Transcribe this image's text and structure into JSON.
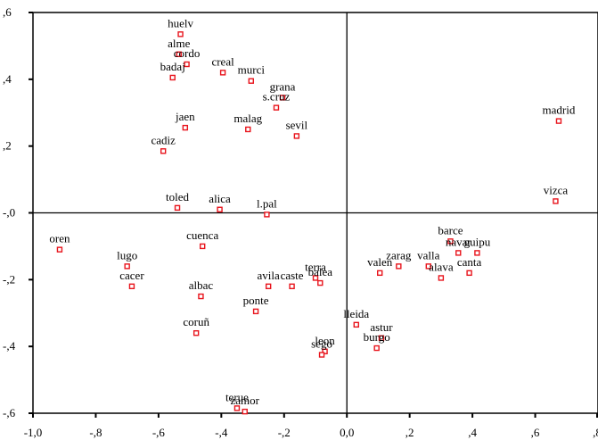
{
  "chart_data": {
    "type": "scatter",
    "title": "",
    "xlabel": "",
    "ylabel": "",
    "xlim": [
      -1.0,
      0.8
    ],
    "ylim": [
      -0.6,
      0.6
    ],
    "grid": false,
    "reference_lines": {
      "x": 0,
      "y": 0
    },
    "marker_color": "#e8141c",
    "marker": "hollow-square",
    "x_ticks": [
      {
        "value": -1.0,
        "label": "-1,0"
      },
      {
        "value": -0.8,
        "label": "-,8"
      },
      {
        "value": -0.6,
        "label": "-,6"
      },
      {
        "value": -0.4,
        "label": "-,4"
      },
      {
        "value": -0.2,
        "label": "-,2"
      },
      {
        "value": 0.0,
        "label": "0,0"
      },
      {
        "value": 0.2,
        "label": ",2"
      },
      {
        "value": 0.4,
        "label": ",4"
      },
      {
        "value": 0.6,
        "label": ",6"
      },
      {
        "value": 0.8,
        "label": ",8"
      }
    ],
    "y_ticks": [
      {
        "value": 0.6,
        "label": ",6"
      },
      {
        "value": 0.4,
        "label": ",4"
      },
      {
        "value": 0.2,
        "label": ",2"
      },
      {
        "value": 0.0,
        "label": "-,0"
      },
      {
        "value": -0.2,
        "label": "-,2"
      },
      {
        "value": -0.4,
        "label": "-,4"
      },
      {
        "value": -0.6,
        "label": "-,6"
      }
    ],
    "points": [
      {
        "label": "huelv",
        "x": -0.53,
        "y": 0.535
      },
      {
        "label": "cordo",
        "x": -0.51,
        "y": 0.445
      },
      {
        "label": "alme",
        "x": -0.535,
        "y": 0.475
      },
      {
        "label": "badaj",
        "x": -0.555,
        "y": 0.405
      },
      {
        "label": "creal",
        "x": -0.395,
        "y": 0.42
      },
      {
        "label": "murci",
        "x": -0.305,
        "y": 0.395
      },
      {
        "label": "grana",
        "x": -0.205,
        "y": 0.345
      },
      {
        "label": "s.cruz",
        "x": -0.225,
        "y": 0.315
      },
      {
        "label": "jaen",
        "x": -0.515,
        "y": 0.255
      },
      {
        "label": "malag",
        "x": -0.315,
        "y": 0.25
      },
      {
        "label": "sevil",
        "x": -0.16,
        "y": 0.23
      },
      {
        "label": "cadiz",
        "x": -0.585,
        "y": 0.185
      },
      {
        "label": "madrid",
        "x": 0.675,
        "y": 0.275
      },
      {
        "label": "vizca",
        "x": 0.665,
        "y": 0.035
      },
      {
        "label": "toled",
        "x": -0.54,
        "y": 0.015
      },
      {
        "label": "alica",
        "x": -0.405,
        "y": 0.01
      },
      {
        "label": "l.pal",
        "x": -0.255,
        "y": -0.005
      },
      {
        "label": "oren",
        "x": -0.915,
        "y": -0.11
      },
      {
        "label": "lugo",
        "x": -0.7,
        "y": -0.16
      },
      {
        "label": "cacer",
        "x": -0.685,
        "y": -0.22
      },
      {
        "label": "cuenca",
        "x": -0.46,
        "y": -0.1
      },
      {
        "label": "albac",
        "x": -0.465,
        "y": -0.25
      },
      {
        "label": "avila",
        "x": -0.25,
        "y": -0.22
      },
      {
        "label": "caste",
        "x": -0.175,
        "y": -0.22
      },
      {
        "label": "terra",
        "x": -0.1,
        "y": -0.195
      },
      {
        "label": "balea",
        "x": -0.085,
        "y": -0.21
      },
      {
        "label": "ponte",
        "x": -0.29,
        "y": -0.295
      },
      {
        "label": "coruñ",
        "x": -0.48,
        "y": -0.36
      },
      {
        "label": "leon",
        "x": -0.07,
        "y": -0.415
      },
      {
        "label": "sego",
        "x": -0.08,
        "y": -0.425
      },
      {
        "label": "lleida",
        "x": 0.03,
        "y": -0.335
      },
      {
        "label": "astur",
        "x": 0.11,
        "y": -0.375
      },
      {
        "label": "burgo",
        "x": 0.095,
        "y": -0.405
      },
      {
        "label": "valen",
        "x": 0.105,
        "y": -0.18
      },
      {
        "label": "zarag",
        "x": 0.165,
        "y": -0.16
      },
      {
        "label": "valla",
        "x": 0.26,
        "y": -0.16
      },
      {
        "label": "alava",
        "x": 0.3,
        "y": -0.195
      },
      {
        "label": "barce",
        "x": 0.33,
        "y": -0.085
      },
      {
        "label": "navar",
        "x": 0.355,
        "y": -0.12
      },
      {
        "label": "guipu",
        "x": 0.415,
        "y": -0.12
      },
      {
        "label": "canta",
        "x": 0.39,
        "y": -0.18
      },
      {
        "label": "terue",
        "x": -0.35,
        "y": -0.585
      },
      {
        "label": "zamor",
        "x": -0.325,
        "y": -0.595
      }
    ]
  }
}
